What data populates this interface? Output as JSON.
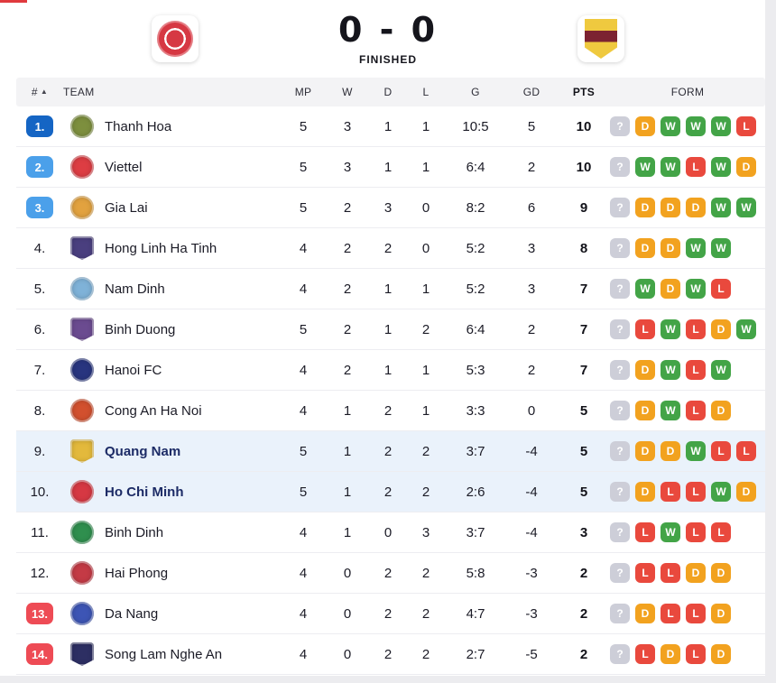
{
  "scoreboard": {
    "score": "0 - 0",
    "status": "FINISHED"
  },
  "colors": {
    "win": "#43a447",
    "draw": "#f2a21f",
    "loss": "#e9493d",
    "unknown": "#cdced8",
    "badge_top": "#1565c4",
    "badge_promo": "#4ba0ea",
    "badge_releg": "#ee4b55",
    "row_highlight": "#eaf2fb",
    "home_crest": "#d63843",
    "away_crest_primary": "#efc93f",
    "away_crest_secondary": "#7c2231"
  },
  "table": {
    "headers": {
      "pos": "#",
      "sort_icon": "▲",
      "team": "TEAM",
      "mp": "MP",
      "w": "W",
      "d": "D",
      "l": "L",
      "g": "G",
      "gd": "GD",
      "pts": "PTS",
      "form": "FORM"
    },
    "rows": [
      {
        "pos": "1.",
        "badge": "top",
        "team": "Thanh Hoa",
        "logo_color": "#7d8f3e",
        "logo_shape": "circle",
        "mp": "5",
        "w": "3",
        "d": "1",
        "l": "1",
        "g": "10:5",
        "gd": "5",
        "pts": "10",
        "highlight": false,
        "form": [
          "?",
          "D",
          "W",
          "W",
          "W",
          "L"
        ]
      },
      {
        "pos": "2.",
        "badge": "promo",
        "team": "Viettel",
        "logo_color": "#dd3d43",
        "logo_shape": "circle",
        "mp": "5",
        "w": "3",
        "d": "1",
        "l": "1",
        "g": "6:4",
        "gd": "2",
        "pts": "10",
        "highlight": false,
        "form": [
          "?",
          "W",
          "W",
          "L",
          "W",
          "D"
        ]
      },
      {
        "pos": "3.",
        "badge": "promo",
        "team": "Gia Lai",
        "logo_color": "#e2a23f",
        "logo_shape": "circle",
        "mp": "5",
        "w": "2",
        "d": "3",
        "l": "0",
        "g": "8:2",
        "gd": "6",
        "pts": "9",
        "highlight": false,
        "form": [
          "?",
          "D",
          "D",
          "D",
          "W",
          "W"
        ]
      },
      {
        "pos": "4.",
        "badge": "none",
        "team": "Hong Linh Ha Tinh",
        "logo_color": "#4a3f7f",
        "logo_shape": "shield",
        "mp": "4",
        "w": "2",
        "d": "2",
        "l": "0",
        "g": "5:2",
        "gd": "3",
        "pts": "8",
        "highlight": false,
        "form": [
          "?",
          "D",
          "D",
          "W",
          "W"
        ]
      },
      {
        "pos": "5.",
        "badge": "none",
        "team": "Nam Dinh",
        "logo_color": "#7fb2d8",
        "logo_shape": "circle",
        "mp": "4",
        "w": "2",
        "d": "1",
        "l": "1",
        "g": "5:2",
        "gd": "3",
        "pts": "7",
        "highlight": false,
        "form": [
          "?",
          "W",
          "D",
          "W",
          "L"
        ]
      },
      {
        "pos": "6.",
        "badge": "none",
        "team": "Binh Duong",
        "logo_color": "#6b4b90",
        "logo_shape": "shield",
        "mp": "5",
        "w": "2",
        "d": "1",
        "l": "2",
        "g": "6:4",
        "gd": "2",
        "pts": "7",
        "highlight": false,
        "form": [
          "?",
          "L",
          "W",
          "L",
          "D",
          "W"
        ]
      },
      {
        "pos": "7.",
        "badge": "none",
        "team": "Hanoi FC",
        "logo_color": "#28357f",
        "logo_shape": "circle",
        "mp": "4",
        "w": "2",
        "d": "1",
        "l": "1",
        "g": "5:3",
        "gd": "2",
        "pts": "7",
        "highlight": false,
        "form": [
          "?",
          "D",
          "W",
          "L",
          "W"
        ]
      },
      {
        "pos": "8.",
        "badge": "none",
        "team": "Cong An Ha Noi",
        "logo_color": "#d2502e",
        "logo_shape": "circle",
        "mp": "4",
        "w": "1",
        "d": "2",
        "l": "1",
        "g": "3:3",
        "gd": "0",
        "pts": "5",
        "highlight": false,
        "form": [
          "?",
          "D",
          "W",
          "L",
          "D"
        ]
      },
      {
        "pos": "9.",
        "badge": "none",
        "team": "Quang Nam",
        "logo_color": "#e3b93c",
        "logo_shape": "shield",
        "mp": "5",
        "w": "1",
        "d": "2",
        "l": "2",
        "g": "3:7",
        "gd": "-4",
        "pts": "5",
        "highlight": true,
        "form": [
          "?",
          "D",
          "D",
          "W",
          "L",
          "L"
        ]
      },
      {
        "pos": "10.",
        "badge": "none",
        "team": "Ho Chi Minh",
        "logo_color": "#d63843",
        "logo_shape": "circle",
        "mp": "5",
        "w": "1",
        "d": "2",
        "l": "2",
        "g": "2:6",
        "gd": "-4",
        "pts": "5",
        "highlight": true,
        "form": [
          "?",
          "D",
          "L",
          "L",
          "W",
          "D"
        ]
      },
      {
        "pos": "11.",
        "badge": "none",
        "team": "Binh Dinh",
        "logo_color": "#2f8f4e",
        "logo_shape": "circle",
        "mp": "4",
        "w": "1",
        "d": "0",
        "l": "3",
        "g": "3:7",
        "gd": "-4",
        "pts": "3",
        "highlight": false,
        "form": [
          "?",
          "L",
          "W",
          "L",
          "L"
        ]
      },
      {
        "pos": "12.",
        "badge": "none",
        "team": "Hai Phong",
        "logo_color": "#c43a45",
        "logo_shape": "circle",
        "mp": "4",
        "w": "0",
        "d": "2",
        "l": "2",
        "g": "5:8",
        "gd": "-3",
        "pts": "2",
        "highlight": false,
        "form": [
          "?",
          "L",
          "L",
          "D",
          "D"
        ]
      },
      {
        "pos": "13.",
        "badge": "releg",
        "team": "Da Nang",
        "logo_color": "#3d55b5",
        "logo_shape": "circle",
        "mp": "4",
        "w": "0",
        "d": "2",
        "l": "2",
        "g": "4:7",
        "gd": "-3",
        "pts": "2",
        "highlight": false,
        "form": [
          "?",
          "D",
          "L",
          "L",
          "D"
        ]
      },
      {
        "pos": "14.",
        "badge": "releg",
        "team": "Song Lam Nghe An",
        "logo_color": "#2d2f63",
        "logo_shape": "shield",
        "mp": "4",
        "w": "0",
        "d": "2",
        "l": "2",
        "g": "2:7",
        "gd": "-5",
        "pts": "2",
        "highlight": false,
        "form": [
          "?",
          "L",
          "D",
          "L",
          "D"
        ]
      }
    ]
  }
}
